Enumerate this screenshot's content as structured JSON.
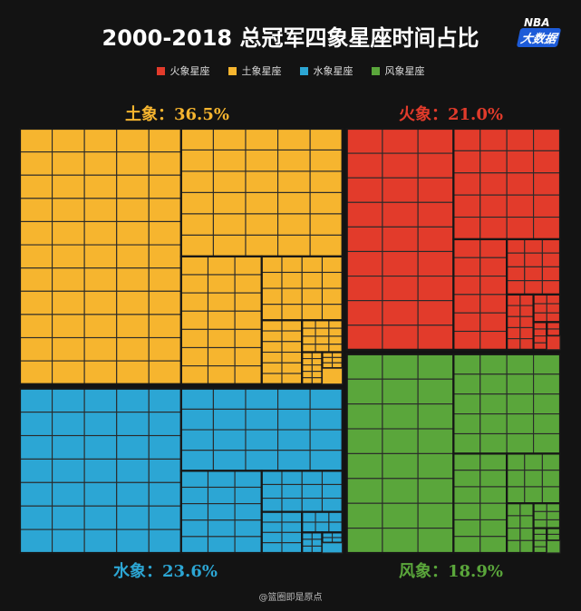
{
  "header": {
    "title": "2000-2018 总冠军四象星座时间占比",
    "logo_top": "NBA",
    "logo_bottom": "大数据"
  },
  "colors": {
    "fire": "#e23b2b",
    "earth": "#f6b52f",
    "water": "#2ca6d4",
    "air": "#5aa63b",
    "background": "#131313"
  },
  "legend": [
    {
      "label": "火象星座",
      "color": "#e23b2b"
    },
    {
      "label": "土象星座",
      "color": "#f6b52f"
    },
    {
      "label": "水象星座",
      "color": "#2ca6d4"
    },
    {
      "label": "风象星座",
      "color": "#5aa63b"
    }
  ],
  "groups": {
    "earth": {
      "label": "土象：36.5%",
      "color": "#f6b52f"
    },
    "fire": {
      "label": "火象：21.0%",
      "color": "#e23b2b"
    },
    "water": {
      "label": "水象：23.6%",
      "color": "#2ca6d4"
    },
    "air": {
      "label": "风象：18.9%",
      "color": "#5aa63b"
    }
  },
  "watermark": "@篮圈即是原点",
  "chart_data": {
    "type": "treemap",
    "title": "2000-2018 总冠军四象星座时间占比",
    "categories": [
      "土象星座",
      "火象星座",
      "水象星座",
      "风象星座"
    ],
    "values": [
      36.5,
      21.0,
      23.6,
      18.9
    ],
    "unit": "%"
  }
}
